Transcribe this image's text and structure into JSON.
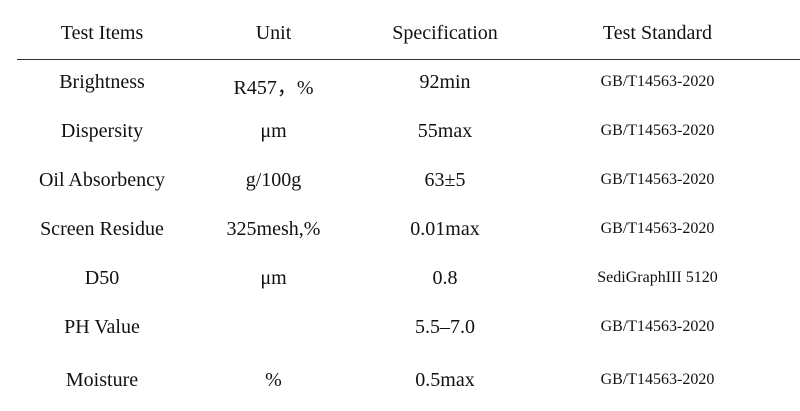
{
  "table": {
    "headers": [
      "Test Items",
      "Unit",
      "Specification",
      "Test Standard"
    ],
    "rows": [
      {
        "item": "Brightness",
        "unit": "R457，%",
        "spec": "92min",
        "standard": "GB/T14563-2020"
      },
      {
        "item": "Dispersity",
        "unit": "μm",
        "spec": "55max",
        "standard": "GB/T14563-2020"
      },
      {
        "item": "Oil Absorbency",
        "unit": "g/100g",
        "spec": "63±5",
        "standard": "GB/T14563-2020"
      },
      {
        "item": "Screen Residue",
        "unit": "325mesh,%",
        "spec": "0.01max",
        "standard": "GB/T14563-2020"
      },
      {
        "item": "D50",
        "unit": "μm",
        "spec": "0.8",
        "standard": "SediGraphIII 5120"
      },
      {
        "item": "PH Value",
        "unit": "",
        "spec": "5.5–7.0",
        "standard": "GB/T14563-2020"
      },
      {
        "item": "Moisture",
        "unit": "%",
        "spec": "0.5max",
        "standard": "GB/T14563-2020"
      }
    ]
  }
}
